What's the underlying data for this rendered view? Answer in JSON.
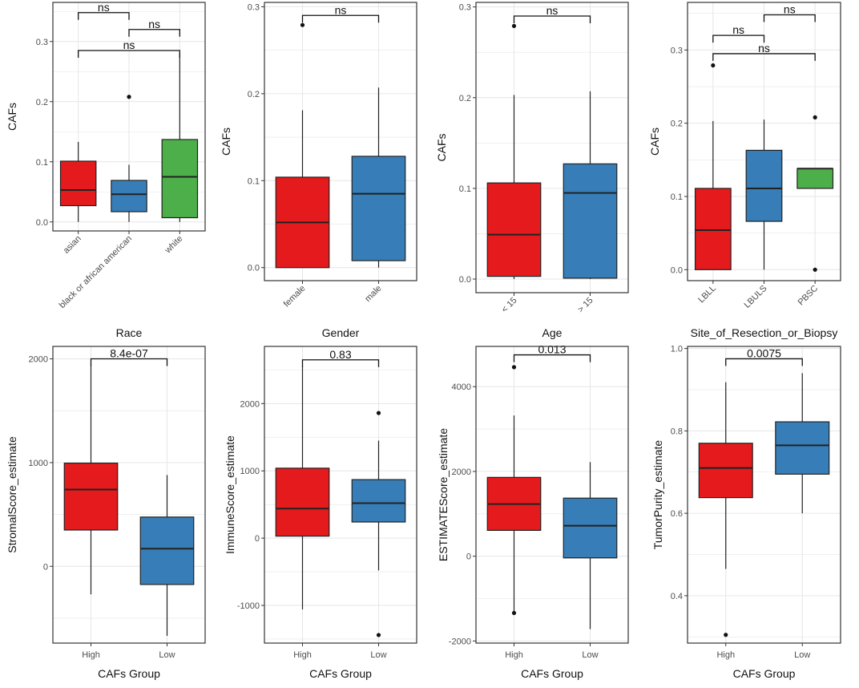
{
  "figure_colors": {
    "red": "#e41a1c",
    "blue": "#377eb8",
    "green": "#4daf4a",
    "grid": "#e6e6e6",
    "panel_border": "#333333"
  },
  "chart_data": [
    {
      "id": "race",
      "type": "boxplot",
      "ylabel": "CAFs",
      "xlabel": "Race",
      "ylim": [
        -0.015,
        0.365
      ],
      "yticks": [
        0.0,
        0.1,
        0.2,
        0.3
      ],
      "ytick_labels": [
        "0.0",
        "0.1",
        "0.2",
        "0.3"
      ],
      "rotate_x": true,
      "categories": [
        "asian",
        "black or african american",
        "white"
      ],
      "boxes": [
        {
          "name": "asian",
          "color": "red",
          "min": 0.0,
          "q1": 0.027,
          "median": 0.053,
          "q3": 0.101,
          "max": 0.133,
          "outliers": []
        },
        {
          "name": "black or african american",
          "color": "blue",
          "min": 0.0,
          "q1": 0.017,
          "median": 0.046,
          "q3": 0.069,
          "max": 0.095,
          "outliers": [
            0.208
          ]
        },
        {
          "name": "white",
          "color": "green",
          "min": 0.0,
          "q1": 0.007,
          "median": 0.075,
          "q3": 0.137,
          "max": 0.28,
          "outliers": []
        }
      ],
      "comparisons": [
        {
          "from": 0,
          "to": 1,
          "y": 0.348,
          "label": "ns"
        },
        {
          "from": 1,
          "to": 2,
          "y": 0.32,
          "label": "ns"
        },
        {
          "from": 0,
          "to": 2,
          "y": 0.285,
          "label": "ns"
        }
      ]
    },
    {
      "id": "gender",
      "type": "boxplot",
      "ylabel": "CAFs",
      "xlabel": "Gender",
      "ylim": [
        -0.015,
        0.305
      ],
      "yticks": [
        0.0,
        0.1,
        0.2,
        0.3
      ],
      "ytick_labels": [
        "0.0",
        "0.1",
        "0.2",
        "0.3"
      ],
      "rotate_x": true,
      "categories": [
        "female",
        "male"
      ],
      "boxes": [
        {
          "name": "female",
          "color": "red",
          "min": 0.0,
          "q1": 0.0,
          "median": 0.052,
          "q3": 0.104,
          "max": 0.181,
          "outliers": [
            0.279
          ]
        },
        {
          "name": "male",
          "color": "blue",
          "min": 0.0,
          "q1": 0.008,
          "median": 0.085,
          "q3": 0.128,
          "max": 0.207,
          "outliers": []
        }
      ],
      "comparisons": [
        {
          "from": 0,
          "to": 1,
          "y": 0.29,
          "label": "ns"
        }
      ]
    },
    {
      "id": "age",
      "type": "boxplot",
      "ylabel": "CAFs",
      "xlabel": "Age",
      "ylim": [
        -0.015,
        0.305
      ],
      "yticks": [
        0.0,
        0.1,
        0.2,
        0.3
      ],
      "ytick_labels": [
        "0.0",
        "0.1",
        "0.2",
        "0.3"
      ],
      "rotate_x": true,
      "categories": [
        "< 15",
        "> 15"
      ],
      "boxes": [
        {
          "name": "< 15",
          "color": "red",
          "min": 0.0,
          "q1": 0.003,
          "median": 0.049,
          "q3": 0.106,
          "max": 0.203,
          "outliers": [
            0.279
          ]
        },
        {
          "name": "> 15",
          "color": "blue",
          "min": 0.0,
          "q1": 0.001,
          "median": 0.095,
          "q3": 0.127,
          "max": 0.207,
          "outliers": []
        }
      ],
      "comparisons": [
        {
          "from": 0,
          "to": 1,
          "y": 0.29,
          "label": "ns"
        }
      ]
    },
    {
      "id": "site",
      "type": "boxplot",
      "ylabel": "CAFs",
      "xlabel": "Site_of_Resection_or_Biopsy",
      "ylim": [
        -0.015,
        0.365
      ],
      "yticks": [
        0.0,
        0.1,
        0.2,
        0.3
      ],
      "ytick_labels": [
        "0.0",
        "0.1",
        "0.2",
        "0.3"
      ],
      "rotate_x": true,
      "categories": [
        "LBLL",
        "LBULS",
        "PBSC"
      ],
      "boxes": [
        {
          "name": "LBLL",
          "color": "red",
          "min": 0.0,
          "q1": 0.0,
          "median": 0.054,
          "q3": 0.111,
          "max": 0.203,
          "outliers": [
            0.279
          ]
        },
        {
          "name": "LBULS",
          "color": "blue",
          "min": 0.0,
          "q1": 0.066,
          "median": 0.111,
          "q3": 0.163,
          "max": 0.205,
          "outliers": []
        },
        {
          "name": "PBSC",
          "color": "green",
          "min": 0.111,
          "q1": 0.111,
          "median": 0.138,
          "q3": 0.138,
          "max": 0.138,
          "outliers": [
            0.208,
            0.0
          ]
        }
      ],
      "comparisons": [
        {
          "from": 1,
          "to": 2,
          "y": 0.348,
          "label": "ns"
        },
        {
          "from": 0,
          "to": 1,
          "y": 0.32,
          "label": "ns"
        },
        {
          "from": 0,
          "to": 2,
          "y": 0.295,
          "label": "ns"
        }
      ]
    },
    {
      "id": "stromal",
      "type": "boxplot",
      "ylabel": "StromalScore_estimate",
      "xlabel": "CAFs Group",
      "ylim": [
        -740,
        2120
      ],
      "yticks": [
        0,
        1000,
        2000
      ],
      "ytick_labels": [
        "0",
        "1000",
        "2000"
      ],
      "rotate_x": false,
      "categories": [
        "High",
        "Low"
      ],
      "boxes": [
        {
          "name": "High",
          "color": "red",
          "min": -270,
          "q1": 350,
          "median": 740,
          "q3": 995,
          "max": 1940,
          "outliers": []
        },
        {
          "name": "Low",
          "color": "blue",
          "min": -670,
          "q1": -175,
          "median": 170,
          "q3": 475,
          "max": 880,
          "outliers": []
        }
      ],
      "comparisons": [
        {
          "from": 0,
          "to": 1,
          "y": 2000,
          "label": "8.4e-07"
        }
      ]
    },
    {
      "id": "immune",
      "type": "boxplot",
      "ylabel": "ImmuneScore_estimate",
      "xlabel": "CAFs Group",
      "ylim": [
        -1560,
        2850
      ],
      "yticks": [
        -1000,
        0,
        1000,
        2000
      ],
      "ytick_labels": [
        "-1000",
        "0",
        "1000",
        "2000"
      ],
      "rotate_x": false,
      "categories": [
        "High",
        "Low"
      ],
      "boxes": [
        {
          "name": "High",
          "color": "red",
          "min": -1060,
          "q1": 30,
          "median": 440,
          "q3": 1040,
          "max": 2560,
          "outliers": []
        },
        {
          "name": "Low",
          "color": "blue",
          "min": -480,
          "q1": 240,
          "median": 520,
          "q3": 870,
          "max": 1450,
          "outliers": [
            1860,
            -1440
          ]
        }
      ],
      "comparisons": [
        {
          "from": 0,
          "to": 1,
          "y": 2650,
          "label": "0.83"
        }
      ]
    },
    {
      "id": "estimate",
      "type": "boxplot",
      "ylabel": "ESTIMATEScore_estimate",
      "xlabel": "CAFs Group",
      "ylim": [
        -2050,
        4950
      ],
      "yticks": [
        -2000,
        0,
        2000,
        4000
      ],
      "ytick_labels": [
        "-2000",
        "0",
        "2000",
        "4000"
      ],
      "rotate_x": false,
      "categories": [
        "High",
        "Low"
      ],
      "boxes": [
        {
          "name": "High",
          "color": "red",
          "min": -1320,
          "q1": 610,
          "median": 1230,
          "q3": 1860,
          "max": 3320,
          "outliers": [
            4460,
            -1340
          ]
        },
        {
          "name": "Low",
          "color": "blue",
          "min": -1720,
          "q1": -40,
          "median": 720,
          "q3": 1370,
          "max": 2220,
          "outliers": []
        }
      ],
      "comparisons": [
        {
          "from": 0,
          "to": 1,
          "y": 4750,
          "label": "0.013"
        }
      ]
    },
    {
      "id": "purity",
      "type": "boxplot",
      "ylabel": "TumorPurity_estimate",
      "xlabel": "CAFs Group",
      "ylim": [
        0.285,
        1.005
      ],
      "yticks": [
        0.4,
        0.6,
        0.8,
        1.0
      ],
      "ytick_labels": [
        "0.4",
        "0.6",
        "0.8",
        "1.0"
      ],
      "rotate_x": false,
      "categories": [
        "High",
        "Low"
      ],
      "boxes": [
        {
          "name": "High",
          "color": "red",
          "min": 0.465,
          "q1": 0.638,
          "median": 0.71,
          "q3": 0.77,
          "max": 0.918,
          "outliers": [
            0.305
          ]
        },
        {
          "name": "Low",
          "color": "blue",
          "min": 0.6,
          "q1": 0.695,
          "median": 0.765,
          "q3": 0.822,
          "max": 0.94,
          "outliers": []
        }
      ],
      "comparisons": [
        {
          "from": 0,
          "to": 1,
          "y": 0.975,
          "label": "0.0075"
        }
      ]
    }
  ]
}
